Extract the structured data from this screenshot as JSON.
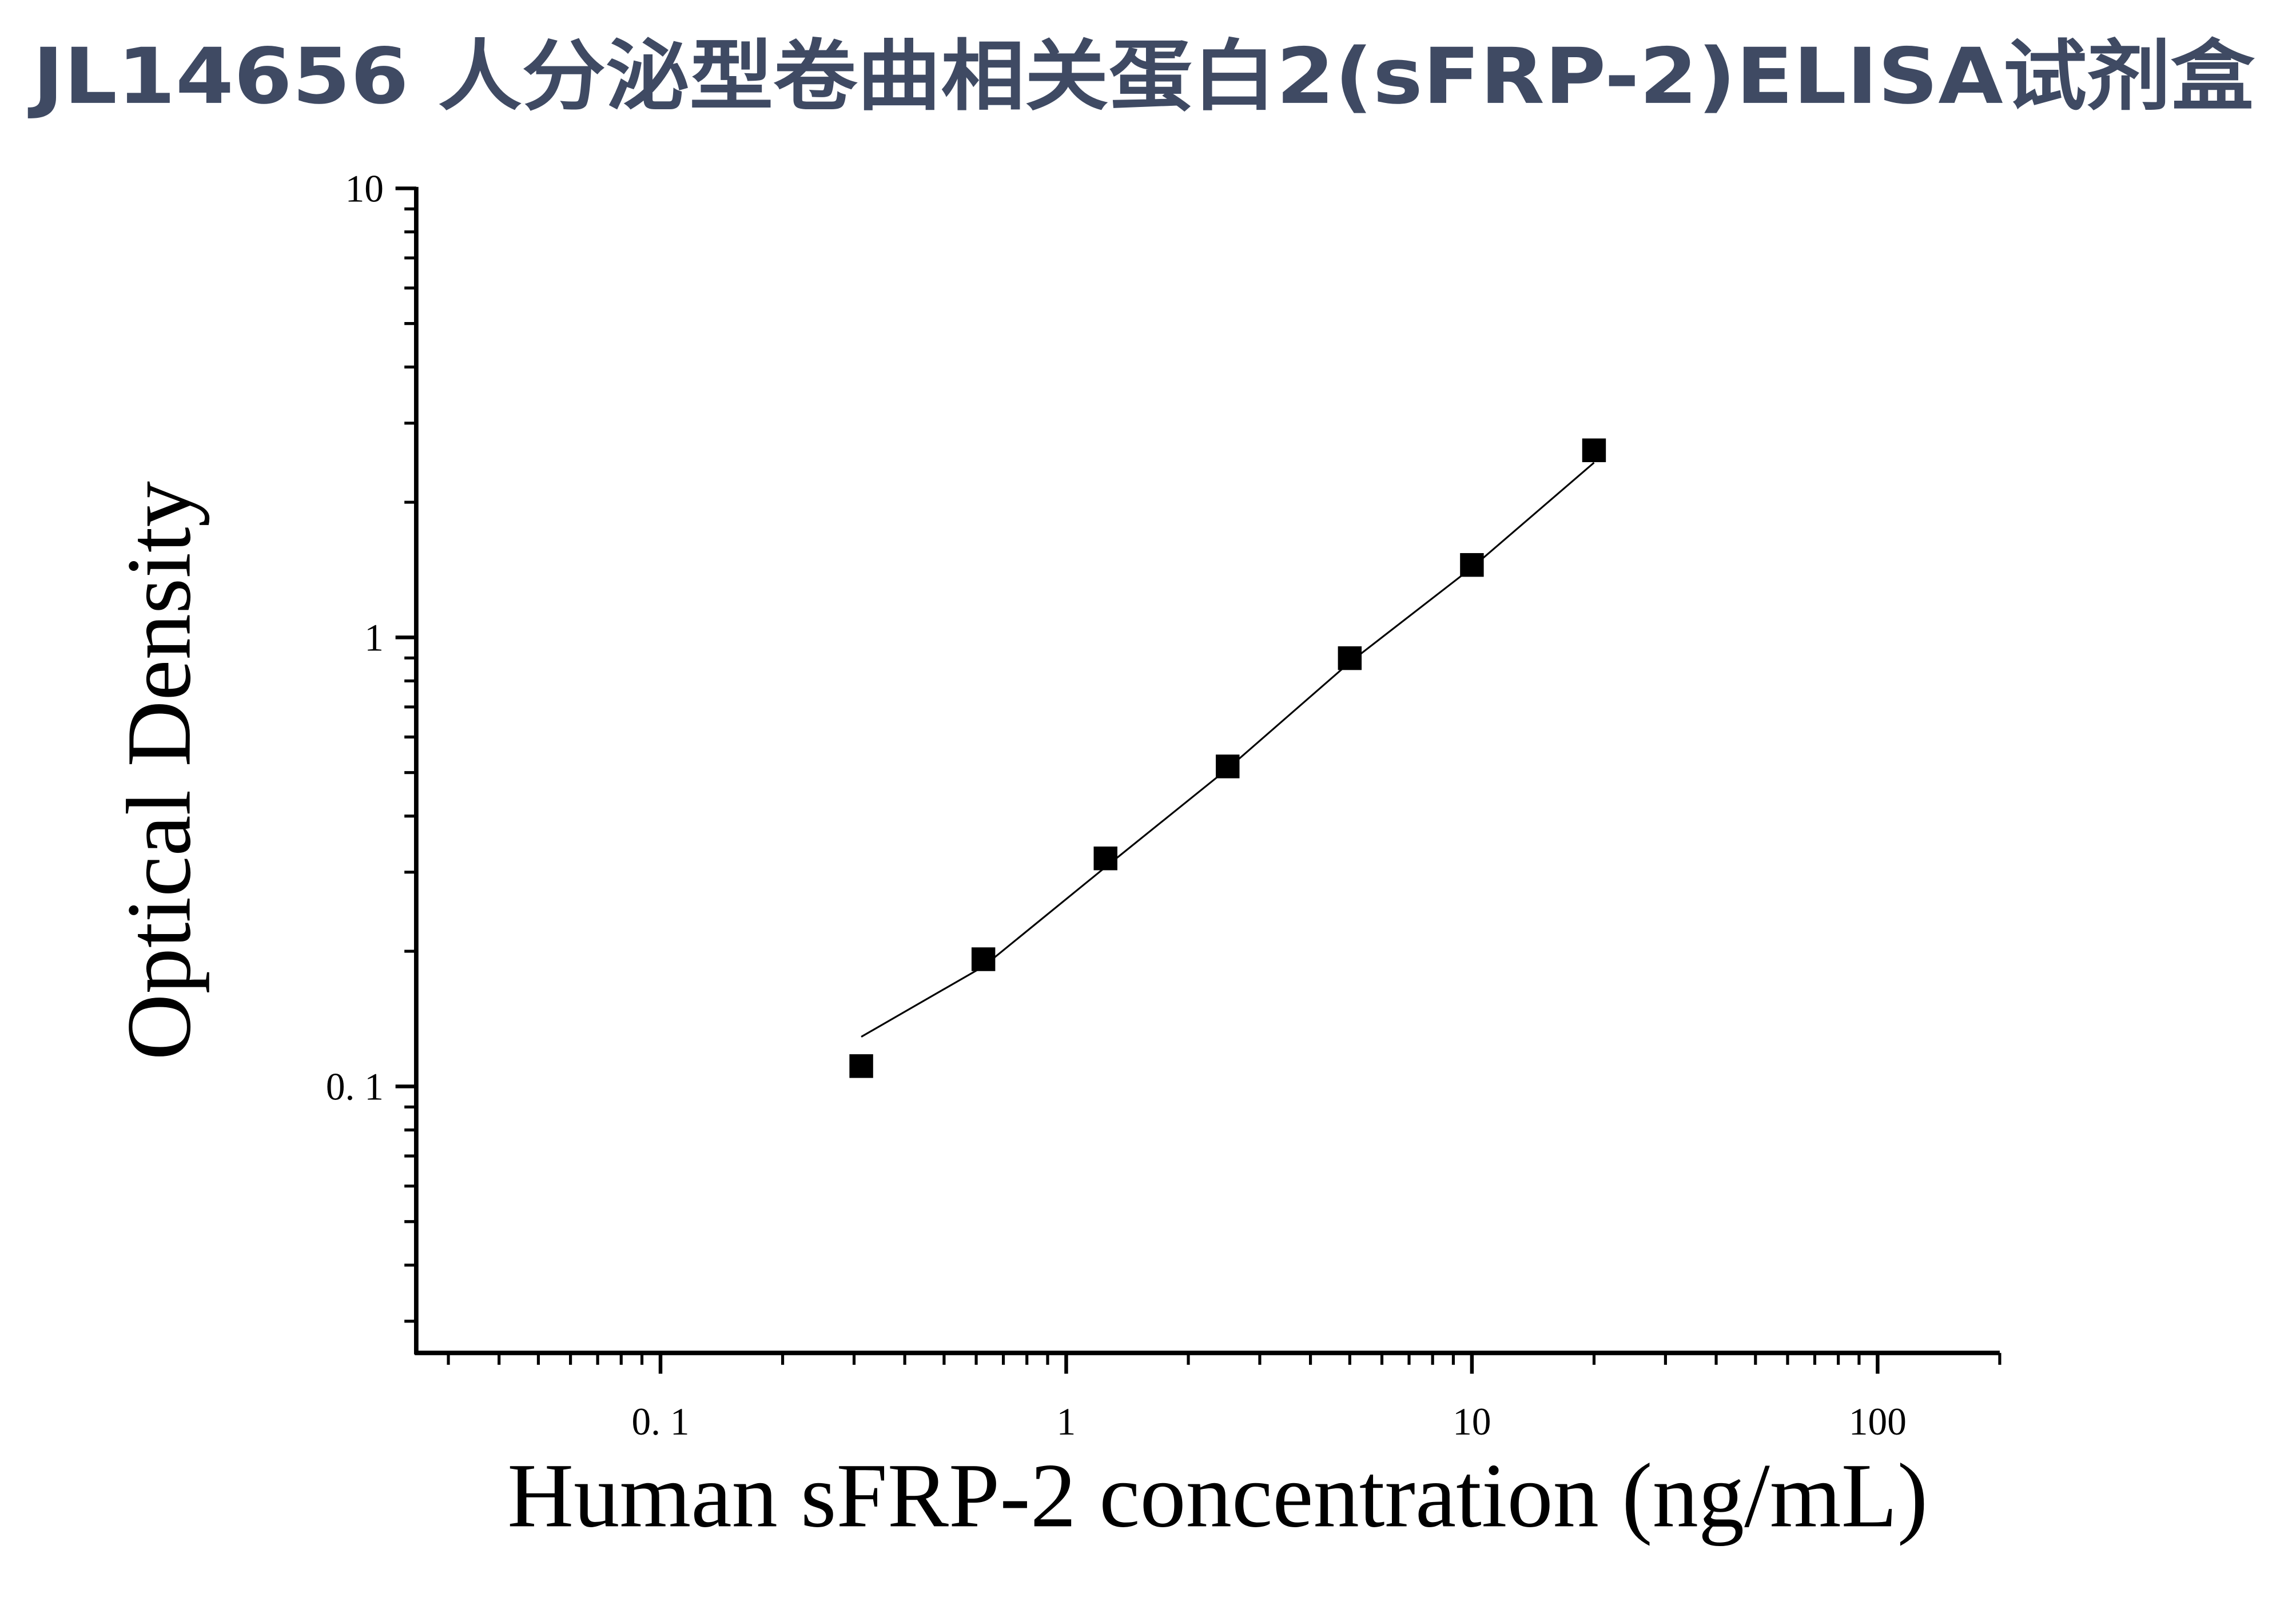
{
  "chart_data": {
    "type": "scatter",
    "title": "JL14656 人分泌型卷曲相关蛋白2(sFRP-2)ELISA试剂盒",
    "x_label": "Human sFRP-2 concentration (ng/mL)",
    "y_label": "Optical Density",
    "x_log": true,
    "y_log": true,
    "xlim": [
      0.025,
      200
    ],
    "ylim": [
      0.0255,
      10
    ],
    "xticks": [
      {
        "value": 0.1,
        "label": "0. 1"
      },
      1,
      10,
      100
    ],
    "yticks": [
      {
        "value": 0.1,
        "label": "0. 1"
      },
      1,
      10
    ],
    "x_minor_ticks": [
      0.03,
      0.04,
      0.05,
      0.06,
      0.07,
      0.08,
      0.09,
      0.2,
      0.3,
      0.4,
      0.5,
      0.6,
      0.7,
      0.8,
      0.9,
      2,
      3,
      4,
      5,
      6,
      7,
      8,
      9,
      20,
      30,
      40,
      50,
      60,
      70,
      80,
      90,
      200
    ],
    "y_minor_ticks": [
      0.03,
      0.04,
      0.05,
      0.06,
      0.07,
      0.08,
      0.09,
      0.2,
      0.3,
      0.4,
      0.5,
      0.6,
      0.7,
      0.8,
      0.9,
      2,
      3,
      4,
      5,
      6,
      7,
      8,
      9
    ],
    "x": [
      0.3125,
      0.625,
      1.25,
      2.5,
      5,
      10,
      20
    ],
    "values": [
      0.111,
      0.192,
      0.322,
      0.516,
      0.899,
      1.45,
      2.61
    ],
    "color": "#000000",
    "fit": {
      "x": [
        0.3125,
        0.625,
        1.25,
        2.5,
        5,
        10,
        20
      ],
      "values": [
        0.129,
        0.185,
        0.308,
        0.51,
        0.88,
        1.43,
        2.45
      ]
    }
  }
}
